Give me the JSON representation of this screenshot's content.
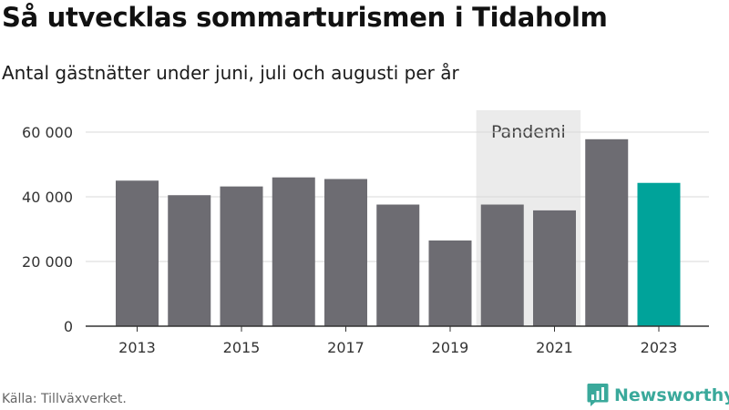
{
  "header": {
    "title": "Så utvecklas sommarturismen i Tidaholm",
    "subtitle": "Antal gästnätter under juni, juli och augusti per år"
  },
  "footer": {
    "source": "Källa: Tillväxverket.",
    "brand": "Newsworthy",
    "brand_icon": "newsworthy-chat-chart-icon"
  },
  "colors": {
    "bar": "#6d6c72",
    "highlight": "#00a39a",
    "shade": "#ebebeb",
    "grid": "#d9d9d9",
    "brand": "#3aa99b"
  },
  "chart_data": {
    "type": "bar",
    "categories": [
      "2013",
      "2014",
      "2015",
      "2016",
      "2017",
      "2018",
      "2019",
      "2020",
      "2021",
      "2022",
      "2023"
    ],
    "values": [
      45000,
      40500,
      43200,
      46000,
      45500,
      37600,
      26500,
      37600,
      35800,
      57800,
      44300
    ],
    "highlight_category": "2023",
    "x_tick_labels": [
      "2013",
      "2015",
      "2017",
      "2019",
      "2021",
      "2023"
    ],
    "y_ticks": [
      0,
      20000,
      40000,
      60000
    ],
    "y_tick_labels": [
      "0",
      "20 000",
      "40 000",
      "60 000"
    ],
    "ylim": [
      0,
      60000
    ],
    "grid": true,
    "annotation": {
      "label": "Pandemi",
      "from": "2020",
      "to": "2021"
    }
  }
}
